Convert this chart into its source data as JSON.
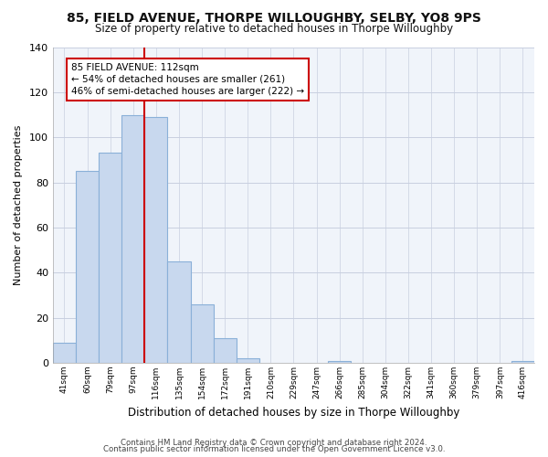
{
  "title": "85, FIELD AVENUE, THORPE WILLOUGHBY, SELBY, YO8 9PS",
  "subtitle": "Size of property relative to detached houses in Thorpe Willoughby",
  "xlabel": "Distribution of detached houses by size in Thorpe Willoughby",
  "ylabel": "Number of detached properties",
  "bin_labels": [
    "41sqm",
    "60sqm",
    "79sqm",
    "97sqm",
    "116sqm",
    "135sqm",
    "154sqm",
    "172sqm",
    "191sqm",
    "210sqm",
    "229sqm",
    "247sqm",
    "266sqm",
    "285sqm",
    "304sqm",
    "322sqm",
    "341sqm",
    "360sqm",
    "379sqm",
    "397sqm",
    "416sqm"
  ],
  "bar_heights": [
    9,
    85,
    93,
    110,
    109,
    45,
    26,
    11,
    2,
    0,
    0,
    0,
    1,
    0,
    0,
    0,
    0,
    0,
    0,
    0,
    1
  ],
  "bar_color": "#c8d8ee",
  "bar_edge_color": "#8ab0d8",
  "vline_index": 4,
  "vline_color": "#cc0000",
  "annotation_text": "85 FIELD AVENUE: 112sqm\n← 54% of detached houses are smaller (261)\n46% of semi-detached houses are larger (222) →",
  "annotation_box_color": "#ffffff",
  "annotation_box_edge_color": "#cc0000",
  "ylim": [
    0,
    140
  ],
  "yticks": [
    0,
    20,
    40,
    60,
    80,
    100,
    120,
    140
  ],
  "footer1": "Contains HM Land Registry data © Crown copyright and database right 2024.",
  "footer2": "Contains public sector information licensed under the Open Government Licence v3.0.",
  "bg_color": "#ffffff",
  "plot_bg_color": "#f0f4fa",
  "grid_color": "#c8cfe0"
}
